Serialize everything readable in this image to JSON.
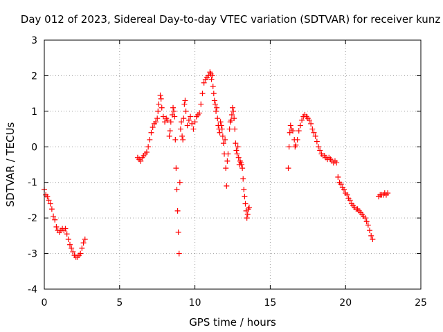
{
  "chart_data": {
    "type": "scatter",
    "title": "Day 012 of 2023, Sidereal Day-to-day VTEC variation (SDTVAR) for receiver kunz",
    "xlabel": "GPS time / hours",
    "ylabel": "SDTVAR / TECUs",
    "xlim": [
      0,
      25
    ],
    "ylim": [
      -4,
      3
    ],
    "xticks": [
      0,
      5,
      10,
      15,
      20,
      25
    ],
    "yticks": [
      -4,
      -3,
      -2,
      -1,
      0,
      1,
      2,
      3
    ],
    "grid": true,
    "marker": "plus",
    "color": "#ff0000",
    "series": [
      {
        "name": "SDTVAR",
        "points": [
          [
            0.0,
            -1.2
          ],
          [
            0.1,
            -1.35
          ],
          [
            0.2,
            -1.4
          ],
          [
            0.3,
            -1.5
          ],
          [
            0.4,
            -1.6
          ],
          [
            0.5,
            -1.75
          ],
          [
            0.6,
            -1.95
          ],
          [
            0.7,
            -2.05
          ],
          [
            0.8,
            -2.25
          ],
          [
            0.9,
            -2.35
          ],
          [
            1.0,
            -2.4
          ],
          [
            1.1,
            -2.35
          ],
          [
            1.2,
            -2.3
          ],
          [
            1.3,
            -2.35
          ],
          [
            1.4,
            -2.3
          ],
          [
            1.5,
            -2.45
          ],
          [
            1.6,
            -2.6
          ],
          [
            1.7,
            -2.75
          ],
          [
            1.8,
            -2.85
          ],
          [
            1.9,
            -2.95
          ],
          [
            2.0,
            -3.05
          ],
          [
            2.1,
            -3.1
          ],
          [
            2.2,
            -3.1
          ],
          [
            2.3,
            -3.05
          ],
          [
            2.4,
            -3.0
          ],
          [
            2.5,
            -2.85
          ],
          [
            2.6,
            -2.7
          ],
          [
            2.7,
            -2.6
          ],
          [
            6.2,
            -0.3
          ],
          [
            6.3,
            -0.35
          ],
          [
            6.4,
            -0.4
          ],
          [
            6.5,
            -0.3
          ],
          [
            6.6,
            -0.25
          ],
          [
            6.7,
            -0.2
          ],
          [
            6.8,
            -0.15
          ],
          [
            6.9,
            0.0
          ],
          [
            7.0,
            0.2
          ],
          [
            7.1,
            0.4
          ],
          [
            7.2,
            0.55
          ],
          [
            7.3,
            0.65
          ],
          [
            7.4,
            0.7
          ],
          [
            7.5,
            0.8
          ],
          [
            7.55,
            1.0
          ],
          [
            7.6,
            1.2
          ],
          [
            7.7,
            1.45
          ],
          [
            7.75,
            1.35
          ],
          [
            7.8,
            1.1
          ],
          [
            7.9,
            0.85
          ],
          [
            8.0,
            0.7
          ],
          [
            8.1,
            0.8
          ],
          [
            8.2,
            0.75
          ],
          [
            8.3,
            0.3
          ],
          [
            8.35,
            0.45
          ],
          [
            8.4,
            0.7
          ],
          [
            8.5,
            0.9
          ],
          [
            8.55,
            1.1
          ],
          [
            8.6,
            1.0
          ],
          [
            8.65,
            0.85
          ],
          [
            8.7,
            0.2
          ],
          [
            8.75,
            -0.6
          ],
          [
            8.8,
            -1.2
          ],
          [
            8.85,
            -1.8
          ],
          [
            8.9,
            -2.4
          ],
          [
            8.95,
            -3.0
          ],
          [
            9.0,
            -1.0
          ],
          [
            9.05,
            0.5
          ],
          [
            9.1,
            0.7
          ],
          [
            9.15,
            0.3
          ],
          [
            9.2,
            0.2
          ],
          [
            9.25,
            0.8
          ],
          [
            9.3,
            1.2
          ],
          [
            9.35,
            1.3
          ],
          [
            9.4,
            1.0
          ],
          [
            9.5,
            0.6
          ],
          [
            9.6,
            0.75
          ],
          [
            9.7,
            0.85
          ],
          [
            9.8,
            0.65
          ],
          [
            9.9,
            0.5
          ],
          [
            10.0,
            0.7
          ],
          [
            10.1,
            0.85
          ],
          [
            10.2,
            0.9
          ],
          [
            10.3,
            0.95
          ],
          [
            10.4,
            1.2
          ],
          [
            10.5,
            1.5
          ],
          [
            10.6,
            1.8
          ],
          [
            10.7,
            1.9
          ],
          [
            10.8,
            1.95
          ],
          [
            10.9,
            2.0
          ],
          [
            11.0,
            2.1
          ],
          [
            11.05,
            2.05
          ],
          [
            11.1,
            1.9
          ],
          [
            11.15,
            2.0
          ],
          [
            11.2,
            1.7
          ],
          [
            11.25,
            1.5
          ],
          [
            11.3,
            1.3
          ],
          [
            11.35,
            1.2
          ],
          [
            11.4,
            1.0
          ],
          [
            11.45,
            1.1
          ],
          [
            11.5,
            0.8
          ],
          [
            11.55,
            0.6
          ],
          [
            11.6,
            0.5
          ],
          [
            11.65,
            0.4
          ],
          [
            11.7,
            0.7
          ],
          [
            11.75,
            0.6
          ],
          [
            11.8,
            0.5
          ],
          [
            11.85,
            0.3
          ],
          [
            11.9,
            0.1
          ],
          [
            11.95,
            -0.2
          ],
          [
            12.0,
            0.2
          ],
          [
            12.05,
            -0.6
          ],
          [
            12.1,
            -1.1
          ],
          [
            12.15,
            -0.4
          ],
          [
            12.2,
            -0.2
          ],
          [
            12.3,
            0.5
          ],
          [
            12.35,
            0.7
          ],
          [
            12.4,
            0.75
          ],
          [
            12.45,
            0.9
          ],
          [
            12.5,
            1.1
          ],
          [
            12.55,
            1.0
          ],
          [
            12.6,
            0.8
          ],
          [
            12.65,
            0.5
          ],
          [
            12.7,
            0.1
          ],
          [
            12.75,
            -0.1
          ],
          [
            12.8,
            -0.2
          ],
          [
            12.85,
            0.0
          ],
          [
            12.9,
            -0.3
          ],
          [
            12.95,
            -0.5
          ],
          [
            13.0,
            -0.4
          ],
          [
            13.05,
            -0.45
          ],
          [
            13.1,
            -0.5
          ],
          [
            13.15,
            -0.6
          ],
          [
            13.2,
            -0.9
          ],
          [
            13.25,
            -1.2
          ],
          [
            13.3,
            -1.4
          ],
          [
            13.35,
            -1.6
          ],
          [
            13.4,
            -1.8
          ],
          [
            13.45,
            -2.0
          ],
          [
            13.5,
            -1.9
          ],
          [
            13.55,
            -1.75
          ],
          [
            13.6,
            -1.7
          ],
          [
            16.2,
            -0.6
          ],
          [
            16.25,
            0.0
          ],
          [
            16.3,
            0.4
          ],
          [
            16.35,
            0.6
          ],
          [
            16.4,
            0.5
          ],
          [
            16.5,
            0.45
          ],
          [
            16.6,
            0.2
          ],
          [
            16.65,
            0.0
          ],
          [
            16.7,
            0.05
          ],
          [
            16.8,
            0.2
          ],
          [
            16.9,
            0.45
          ],
          [
            17.0,
            0.6
          ],
          [
            17.1,
            0.75
          ],
          [
            17.2,
            0.85
          ],
          [
            17.3,
            0.9
          ],
          [
            17.4,
            0.85
          ],
          [
            17.5,
            0.8
          ],
          [
            17.6,
            0.75
          ],
          [
            17.7,
            0.65
          ],
          [
            17.8,
            0.5
          ],
          [
            17.9,
            0.4
          ],
          [
            18.0,
            0.3
          ],
          [
            18.1,
            0.15
          ],
          [
            18.2,
            0.0
          ],
          [
            18.3,
            -0.1
          ],
          [
            18.4,
            -0.2
          ],
          [
            18.5,
            -0.25
          ],
          [
            18.6,
            -0.25
          ],
          [
            18.7,
            -0.3
          ],
          [
            18.8,
            -0.35
          ],
          [
            18.9,
            -0.3
          ],
          [
            19.0,
            -0.35
          ],
          [
            19.1,
            -0.4
          ],
          [
            19.2,
            -0.45
          ],
          [
            19.3,
            -0.4
          ],
          [
            19.4,
            -0.45
          ],
          [
            19.5,
            -0.85
          ],
          [
            19.6,
            -1.0
          ],
          [
            19.7,
            -1.05
          ],
          [
            19.8,
            -1.15
          ],
          [
            19.9,
            -1.2
          ],
          [
            20.0,
            -1.3
          ],
          [
            20.1,
            -1.35
          ],
          [
            20.2,
            -1.45
          ],
          [
            20.3,
            -1.5
          ],
          [
            20.4,
            -1.6
          ],
          [
            20.5,
            -1.65
          ],
          [
            20.6,
            -1.7
          ],
          [
            20.7,
            -1.75
          ],
          [
            20.8,
            -1.75
          ],
          [
            20.9,
            -1.8
          ],
          [
            21.0,
            -1.85
          ],
          [
            21.1,
            -1.9
          ],
          [
            21.2,
            -1.95
          ],
          [
            21.3,
            -2.0
          ],
          [
            21.4,
            -2.1
          ],
          [
            21.5,
            -2.2
          ],
          [
            21.6,
            -2.35
          ],
          [
            21.7,
            -2.5
          ],
          [
            21.8,
            -2.6
          ],
          [
            22.2,
            -1.4
          ],
          [
            22.3,
            -1.35
          ],
          [
            22.4,
            -1.35
          ],
          [
            22.5,
            -1.35
          ],
          [
            22.6,
            -1.3
          ],
          [
            22.7,
            -1.35
          ],
          [
            22.8,
            -1.3
          ]
        ]
      }
    ]
  }
}
